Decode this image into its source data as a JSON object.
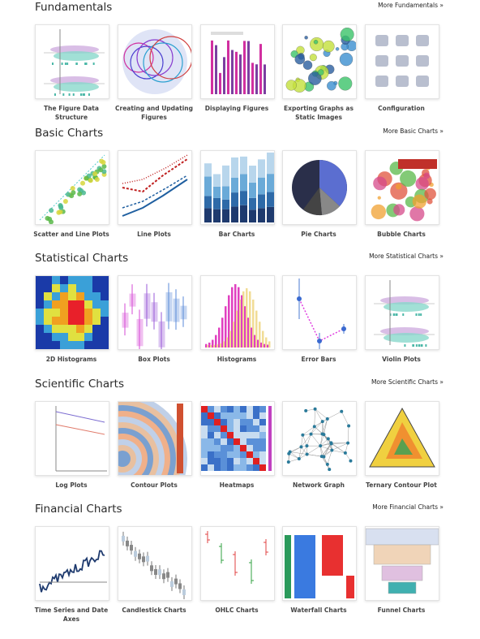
{
  "sections": [
    {
      "title": "Fundamentals",
      "more": "More Fundamentals »",
      "items": [
        "The Figure Data Structure",
        "Creating and Updating Figures",
        "Displaying Figures",
        "Exporting Graphs as Static Images",
        "Configuration"
      ]
    },
    {
      "title": "Basic Charts",
      "more": "More Basic Charts »",
      "items": [
        "Scatter and Line Plots",
        "Line Plots",
        "Bar Charts",
        "Pie Charts",
        "Bubble Charts"
      ]
    },
    {
      "title": "Statistical Charts",
      "more": "More Statistical Charts »",
      "items": [
        "2D Histograms",
        "Box Plots",
        "Histograms",
        "Error Bars",
        "Violin Plots"
      ]
    },
    {
      "title": "Scientific Charts",
      "more": "More Scientific Charts »",
      "items": [
        "Log Plots",
        "Contour Plots",
        "Heatmaps",
        "Network Graph",
        "Ternary Contour Plot"
      ]
    },
    {
      "title": "Financial Charts",
      "more": "More Financial Charts »",
      "items": [
        "Time Series and Date Axes",
        "Candlestick Charts",
        "OHLC Charts",
        "Waterfall Charts",
        "Funnel Charts"
      ]
    }
  ]
}
